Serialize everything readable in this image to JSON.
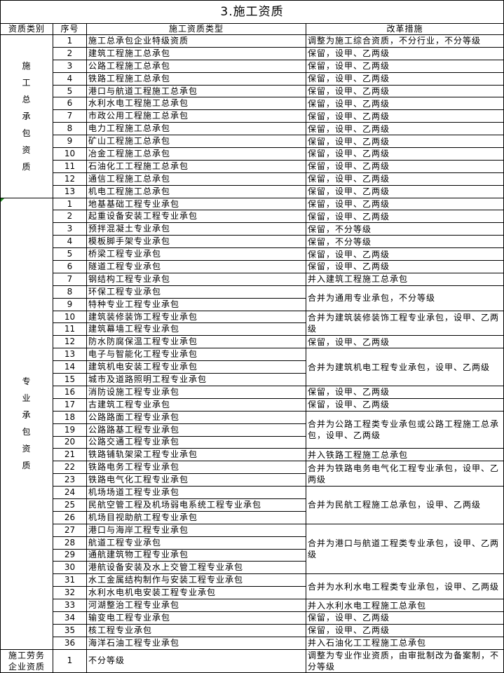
{
  "title": "3.施工资质",
  "headers": [
    "资质类别",
    "序号",
    "施工资质类型",
    "改革措施"
  ],
  "sections": [
    {
      "category": "施工总承包资质",
      "vertical": true,
      "rows": [
        {
          "seq": "1",
          "type": "施工总承包企业特级资质"
        },
        {
          "seq": "2",
          "type": "建筑工程施工总承包"
        },
        {
          "seq": "3",
          "type": "公路工程施工总承包"
        },
        {
          "seq": "4",
          "type": "铁路工程施工总承包"
        },
        {
          "seq": "5",
          "type": "港口与航道工程施工总承包"
        },
        {
          "seq": "6",
          "type": "水利水电工程施工总承包"
        },
        {
          "seq": "7",
          "type": "市政公用工程施工总承包"
        },
        {
          "seq": "8",
          "type": "电力工程施工总承包"
        },
        {
          "seq": "9",
          "type": "矿山工程施工总承包"
        },
        {
          "seq": "10",
          "type": "冶金工程施工总承包"
        },
        {
          "seq": "11",
          "type": "石油化工工程施工总承包"
        },
        {
          "seq": "12",
          "type": "通信工程施工总承包"
        },
        {
          "seq": "13",
          "type": "机电工程施工总承包"
        }
      ],
      "measures": [
        {
          "text": "调整为施工综合资质，不分行业，不分等级",
          "span": 1
        },
        {
          "text": "保留，设甲、乙两级",
          "span": 1
        },
        {
          "text": "保留，设甲、乙两级",
          "span": 1
        },
        {
          "text": "保留，设甲、乙两级",
          "span": 1
        },
        {
          "text": "保留，设甲、乙两级",
          "span": 1
        },
        {
          "text": "保留，设甲、乙两级",
          "span": 1
        },
        {
          "text": "保留，设甲、乙两级",
          "span": 1
        },
        {
          "text": "保留，设甲、乙两级",
          "span": 1
        },
        {
          "text": "保留，设甲、乙两级",
          "span": 1
        },
        {
          "text": "保留，设甲、乙两级",
          "span": 1
        },
        {
          "text": "保留，设甲、乙两级",
          "span": 1
        },
        {
          "text": "保留，设甲、乙两级",
          "span": 1
        },
        {
          "text": "保留，设甲、乙两级",
          "span": 1
        }
      ]
    },
    {
      "category": "专业承包资质",
      "vertical": true,
      "comment_marker": true,
      "rows": [
        {
          "seq": "1",
          "type": "地基基础工程专业承包"
        },
        {
          "seq": "2",
          "type": "起重设备安装工程专业承包"
        },
        {
          "seq": "3",
          "type": "预拌混凝土专业承包"
        },
        {
          "seq": "4",
          "type": "模板脚手架专业承包"
        },
        {
          "seq": "5",
          "type": "桥梁工程专业承包"
        },
        {
          "seq": "6",
          "type": "隧道工程专业承包"
        },
        {
          "seq": "7",
          "type": "钢结构工程专业承包"
        },
        {
          "seq": "8",
          "type": "环保工程专业承包"
        },
        {
          "seq": "9",
          "type": "特种专业工程专业承包"
        },
        {
          "seq": "10",
          "type": "建筑装修装饰工程专业承包"
        },
        {
          "seq": "11",
          "type": "建筑幕墙工程专业承包"
        },
        {
          "seq": "12",
          "type": "防水防腐保温工程专业承包"
        },
        {
          "seq": "13",
          "type": "电子与智能化工程专业承包"
        },
        {
          "seq": "14",
          "type": "建筑机电安装工程专业承包"
        },
        {
          "seq": "15",
          "type": "城市及道路照明工程专业承包"
        },
        {
          "seq": "16",
          "type": "消防设施工程专业承包"
        },
        {
          "seq": "17",
          "type": "古建筑工程专业承包"
        },
        {
          "seq": "18",
          "type": "公路路面工程专业承包"
        },
        {
          "seq": "19",
          "type": "公路路基工程专业承包"
        },
        {
          "seq": "20",
          "type": "公路交通工程专业承包"
        },
        {
          "seq": "21",
          "type": "铁路铺轨架梁工程专业承包"
        },
        {
          "seq": "22",
          "type": "铁路电务工程专业承包"
        },
        {
          "seq": "23",
          "type": "铁路电气化工程专业承包"
        },
        {
          "seq": "24",
          "type": "机场场道工程专业承包"
        },
        {
          "seq": "25",
          "type": "民航空管工程及机场弱电系统工程专业承包"
        },
        {
          "seq": "26",
          "type": "机场目视助航工程专业承包"
        },
        {
          "seq": "27",
          "type": "港口与海岸工程专业承包"
        },
        {
          "seq": "28",
          "type": "航道工程专业承包"
        },
        {
          "seq": "29",
          "type": "通航建筑物工程专业承包"
        },
        {
          "seq": "30",
          "type": "港航设备安装及水上交管工程专业承包"
        },
        {
          "seq": "31",
          "type": "水工金属结构制作与安装工程专业承包"
        },
        {
          "seq": "32",
          "type": "水利水电机电安装工程专业承包"
        },
        {
          "seq": "33",
          "type": "河湖整治工程专业承包"
        },
        {
          "seq": "34",
          "type": "输变电工程专业承包"
        },
        {
          "seq": "35",
          "type": "核工程专业承包"
        },
        {
          "seq": "36",
          "type": "海洋石油工程专业承包"
        }
      ],
      "measures": [
        {
          "text": "保留，设甲、乙两级",
          "span": 1
        },
        {
          "text": "保留，设甲、乙两级",
          "span": 1
        },
        {
          "text": "保留，不分等级",
          "span": 1
        },
        {
          "text": "保留，不分等级",
          "span": 1
        },
        {
          "text": "保留，设甲、乙两级",
          "span": 1
        },
        {
          "text": "保留，设甲、乙两级",
          "span": 1
        },
        {
          "text": "并入建筑工程施工总承包",
          "span": 1
        },
        {
          "text": "合并为通用专业承包，不分等级",
          "span": 2
        },
        {
          "text": "合并为建筑装修装饰工程专业承包，设甲、乙两级",
          "span": 2
        },
        {
          "text": "保留，设甲、乙两级",
          "span": 1
        },
        {
          "text": "合并为建筑机电工程专业承包，设甲、乙两级",
          "span": 3
        },
        {
          "text": "保留，设甲、乙两级",
          "span": 1
        },
        {
          "text": "保留，设甲、乙两级",
          "span": 1
        },
        {
          "text": "合并为公路工程类专业承包或公路工程施工总承包，设甲、乙两级",
          "span": 3
        },
        {
          "text": "并入铁路工程施工总承包",
          "span": 1
        },
        {
          "text": "合并为铁路电务电气化工程专业承包，设甲、乙两级",
          "span": 2
        },
        {
          "text": "合并为民航工程施工总承包，设甲、乙两级",
          "span": 3
        },
        {
          "text": "合并为港口与航道工程类专业承包，设甲、乙两级",
          "span": 4
        },
        {
          "text": "合并为水利水电工程类专业承包，设甲、乙两级",
          "span": 2
        },
        {
          "text": "并入水利水电工程施工总承包",
          "span": 1
        },
        {
          "text": "保留，设甲、乙两级",
          "span": 1
        },
        {
          "text": "保留，设甲、乙两级",
          "span": 1
        },
        {
          "text": "并入石油化工工程施工总承包",
          "span": 1
        }
      ]
    },
    {
      "category": "施工劳务企业资质",
      "vertical": false,
      "rows": [
        {
          "seq": "1",
          "type": "不分等级"
        }
      ],
      "measures": [
        {
          "text": "调整为专业作业资质，由审批制改为备案制，不分等级",
          "span": 1
        }
      ]
    }
  ]
}
